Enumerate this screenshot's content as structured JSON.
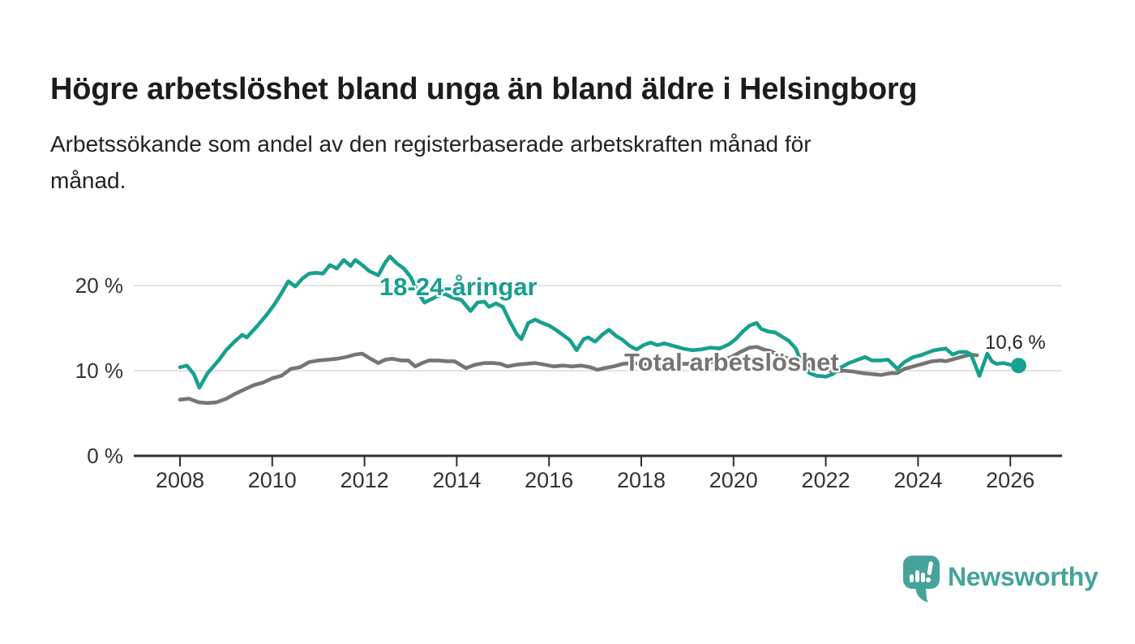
{
  "header": {
    "title": "Högre arbetslöshet bland unga än bland äldre i Helsingborg",
    "subtitle_lines": [
      "Arbetssökande som andel av den registerbaserade arbetskraften månad för",
      "månad."
    ]
  },
  "chart_data": {
    "type": "line",
    "x_unit": "decimal_year",
    "x_range": [
      2007.0,
      2027.0
    ],
    "y_range": [
      0,
      25
    ],
    "grid": "horizontal",
    "legend_position": "inline-labels",
    "yticks": [
      {
        "value": 0,
        "label": "0 %"
      },
      {
        "value": 10,
        "label": "10 %"
      },
      {
        "value": 20,
        "label": "20 %"
      }
    ],
    "xticks": [
      {
        "value": 2008,
        "label": "2008"
      },
      {
        "value": 2010,
        "label": "2010"
      },
      {
        "value": 2012,
        "label": "2012"
      },
      {
        "value": 2014,
        "label": "2014"
      },
      {
        "value": 2016,
        "label": "2016"
      },
      {
        "value": 2018,
        "label": "2018"
      },
      {
        "value": 2020,
        "label": "2020"
      },
      {
        "value": 2022,
        "label": "2022"
      },
      {
        "value": 2024,
        "label": "2024"
      },
      {
        "value": 2026,
        "label": "2026"
      }
    ],
    "series": [
      {
        "name": "18-24-åringar",
        "color": "#17A08E",
        "end_marker": true,
        "end_label": "10,6 %",
        "end_value": 10.6,
        "points": [
          [
            2008.0,
            10.4
          ],
          [
            2008.15,
            10.6
          ],
          [
            2008.3,
            9.6
          ],
          [
            2008.42,
            8.0
          ],
          [
            2008.6,
            9.7
          ],
          [
            2008.85,
            11.3
          ],
          [
            2009.0,
            12.4
          ],
          [
            2009.2,
            13.5
          ],
          [
            2009.35,
            14.2
          ],
          [
            2009.45,
            13.9
          ],
          [
            2009.7,
            15.4
          ],
          [
            2009.9,
            16.7
          ],
          [
            2010.05,
            17.8
          ],
          [
            2010.2,
            19.1
          ],
          [
            2010.35,
            20.5
          ],
          [
            2010.5,
            19.9
          ],
          [
            2010.65,
            20.8
          ],
          [
            2010.8,
            21.4
          ],
          [
            2010.95,
            21.5
          ],
          [
            2011.1,
            21.4
          ],
          [
            2011.25,
            22.4
          ],
          [
            2011.4,
            22.0
          ],
          [
            2011.55,
            23.0
          ],
          [
            2011.7,
            22.3
          ],
          [
            2011.8,
            23.0
          ],
          [
            2011.95,
            22.4
          ],
          [
            2012.1,
            21.7
          ],
          [
            2012.3,
            21.2
          ],
          [
            2012.45,
            22.7
          ],
          [
            2012.55,
            23.4
          ],
          [
            2012.7,
            22.6
          ],
          [
            2012.85,
            22.0
          ],
          [
            2013.0,
            21.0
          ],
          [
            2013.15,
            19.3
          ],
          [
            2013.3,
            18.0
          ],
          [
            2013.45,
            18.4
          ],
          [
            2013.6,
            18.8
          ],
          [
            2013.75,
            19.0
          ],
          [
            2013.9,
            18.6
          ],
          [
            2014.1,
            18.3
          ],
          [
            2014.3,
            17.0
          ],
          [
            2014.45,
            18.0
          ],
          [
            2014.6,
            18.1
          ],
          [
            2014.7,
            17.5
          ],
          [
            2014.85,
            17.9
          ],
          [
            2015.0,
            17.5
          ],
          [
            2015.15,
            15.8
          ],
          [
            2015.3,
            14.3
          ],
          [
            2015.4,
            13.7
          ],
          [
            2015.55,
            15.6
          ],
          [
            2015.7,
            16.0
          ],
          [
            2015.85,
            15.6
          ],
          [
            2016.0,
            15.3
          ],
          [
            2016.15,
            14.8
          ],
          [
            2016.3,
            14.2
          ],
          [
            2016.45,
            13.6
          ],
          [
            2016.6,
            12.4
          ],
          [
            2016.75,
            13.7
          ],
          [
            2016.85,
            13.9
          ],
          [
            2017.0,
            13.4
          ],
          [
            2017.15,
            14.2
          ],
          [
            2017.3,
            14.8
          ],
          [
            2017.45,
            14.1
          ],
          [
            2017.6,
            13.6
          ],
          [
            2017.75,
            12.9
          ],
          [
            2017.9,
            12.5
          ],
          [
            2018.05,
            13.0
          ],
          [
            2018.2,
            13.3
          ],
          [
            2018.35,
            13.0
          ],
          [
            2018.5,
            13.2
          ],
          [
            2018.7,
            12.9
          ],
          [
            2018.9,
            12.6
          ],
          [
            2019.1,
            12.4
          ],
          [
            2019.3,
            12.5
          ],
          [
            2019.5,
            12.7
          ],
          [
            2019.7,
            12.6
          ],
          [
            2019.9,
            13.1
          ],
          [
            2020.05,
            13.7
          ],
          [
            2020.2,
            14.6
          ],
          [
            2020.35,
            15.3
          ],
          [
            2020.5,
            15.6
          ],
          [
            2020.6,
            14.9
          ],
          [
            2020.75,
            14.6
          ],
          [
            2020.9,
            14.5
          ],
          [
            2021.05,
            14.0
          ],
          [
            2021.2,
            13.5
          ],
          [
            2021.35,
            12.6
          ],
          [
            2021.5,
            10.6
          ],
          [
            2021.65,
            9.7
          ],
          [
            2021.8,
            9.4
          ],
          [
            2022.0,
            9.3
          ],
          [
            2022.15,
            9.6
          ],
          [
            2022.3,
            10.3
          ],
          [
            2022.5,
            10.9
          ],
          [
            2022.7,
            11.3
          ],
          [
            2022.85,
            11.6
          ],
          [
            2023.0,
            11.2
          ],
          [
            2023.2,
            11.2
          ],
          [
            2023.35,
            11.3
          ],
          [
            2023.55,
            10.2
          ],
          [
            2023.7,
            11.0
          ],
          [
            2023.9,
            11.6
          ],
          [
            2024.05,
            11.8
          ],
          [
            2024.2,
            12.1
          ],
          [
            2024.35,
            12.4
          ],
          [
            2024.6,
            12.6
          ],
          [
            2024.75,
            11.9
          ],
          [
            2024.9,
            12.2
          ],
          [
            2025.05,
            12.2
          ],
          [
            2025.15,
            11.9
          ],
          [
            2025.33,
            9.4
          ],
          [
            2025.5,
            12.0
          ],
          [
            2025.6,
            11.1
          ],
          [
            2025.7,
            10.8
          ],
          [
            2025.85,
            10.9
          ],
          [
            2026.0,
            10.7
          ],
          [
            2026.18,
            10.6
          ]
        ]
      },
      {
        "name": "Total arbetslöshet",
        "color": "#757575",
        "end_marker": false,
        "points": [
          [
            2008.0,
            6.6
          ],
          [
            2008.2,
            6.7
          ],
          [
            2008.4,
            6.3
          ],
          [
            2008.6,
            6.2
          ],
          [
            2008.8,
            6.3
          ],
          [
            2009.0,
            6.7
          ],
          [
            2009.2,
            7.3
          ],
          [
            2009.4,
            7.8
          ],
          [
            2009.6,
            8.3
          ],
          [
            2009.8,
            8.6
          ],
          [
            2010.0,
            9.1
          ],
          [
            2010.2,
            9.4
          ],
          [
            2010.4,
            10.2
          ],
          [
            2010.6,
            10.4
          ],
          [
            2010.8,
            11.0
          ],
          [
            2011.0,
            11.2
          ],
          [
            2011.2,
            11.3
          ],
          [
            2011.4,
            11.4
          ],
          [
            2011.6,
            11.6
          ],
          [
            2011.8,
            11.9
          ],
          [
            2011.95,
            12.0
          ],
          [
            2012.1,
            11.5
          ],
          [
            2012.3,
            10.9
          ],
          [
            2012.45,
            11.3
          ],
          [
            2012.6,
            11.4
          ],
          [
            2012.8,
            11.2
          ],
          [
            2012.95,
            11.2
          ],
          [
            2013.1,
            10.5
          ],
          [
            2013.25,
            10.9
          ],
          [
            2013.4,
            11.2
          ],
          [
            2013.6,
            11.2
          ],
          [
            2013.8,
            11.1
          ],
          [
            2013.95,
            11.1
          ],
          [
            2014.2,
            10.3
          ],
          [
            2014.4,
            10.7
          ],
          [
            2014.6,
            10.9
          ],
          [
            2014.8,
            10.9
          ],
          [
            2014.95,
            10.8
          ],
          [
            2015.1,
            10.5
          ],
          [
            2015.3,
            10.7
          ],
          [
            2015.5,
            10.8
          ],
          [
            2015.7,
            10.9
          ],
          [
            2015.9,
            10.7
          ],
          [
            2016.1,
            10.5
          ],
          [
            2016.3,
            10.6
          ],
          [
            2016.5,
            10.5
          ],
          [
            2016.7,
            10.6
          ],
          [
            2016.9,
            10.4
          ],
          [
            2017.05,
            10.1
          ],
          [
            2017.2,
            10.3
          ],
          [
            2017.4,
            10.5
          ],
          [
            2017.6,
            10.8
          ],
          [
            2017.8,
            10.9
          ],
          [
            2018.0,
            10.8
          ],
          [
            2018.25,
            10.6
          ],
          [
            2018.5,
            10.7
          ],
          [
            2018.75,
            10.8
          ],
          [
            2019.0,
            10.8
          ],
          [
            2019.25,
            10.9
          ],
          [
            2019.5,
            11.0
          ],
          [
            2019.75,
            11.2
          ],
          [
            2019.95,
            11.6
          ],
          [
            2020.15,
            12.2
          ],
          [
            2020.35,
            12.7
          ],
          [
            2020.5,
            12.8
          ],
          [
            2020.65,
            12.5
          ],
          [
            2020.8,
            12.3
          ],
          [
            2021.0,
            11.8
          ],
          [
            2021.2,
            11.4
          ],
          [
            2021.4,
            11.0
          ],
          [
            2021.6,
            10.7
          ],
          [
            2021.8,
            10.4
          ],
          [
            2022.0,
            10.1
          ],
          [
            2022.2,
            9.9
          ],
          [
            2022.4,
            10.0
          ],
          [
            2022.6,
            9.9
          ],
          [
            2022.8,
            9.7
          ],
          [
            2023.0,
            9.6
          ],
          [
            2023.2,
            9.5
          ],
          [
            2023.4,
            9.7
          ],
          [
            2023.55,
            9.7
          ],
          [
            2023.7,
            10.2
          ],
          [
            2023.9,
            10.5
          ],
          [
            2024.1,
            10.8
          ],
          [
            2024.3,
            11.1
          ],
          [
            2024.5,
            11.2
          ],
          [
            2024.6,
            11.1
          ],
          [
            2024.8,
            11.4
          ],
          [
            2025.0,
            11.7
          ],
          [
            2025.15,
            11.9
          ],
          [
            2025.28,
            11.8
          ]
        ]
      }
    ]
  },
  "footer": {
    "brand": "Newsworthy",
    "brand_color": "#45A39B",
    "logo_icon": "speech-bubble-bar-chart-icon"
  }
}
